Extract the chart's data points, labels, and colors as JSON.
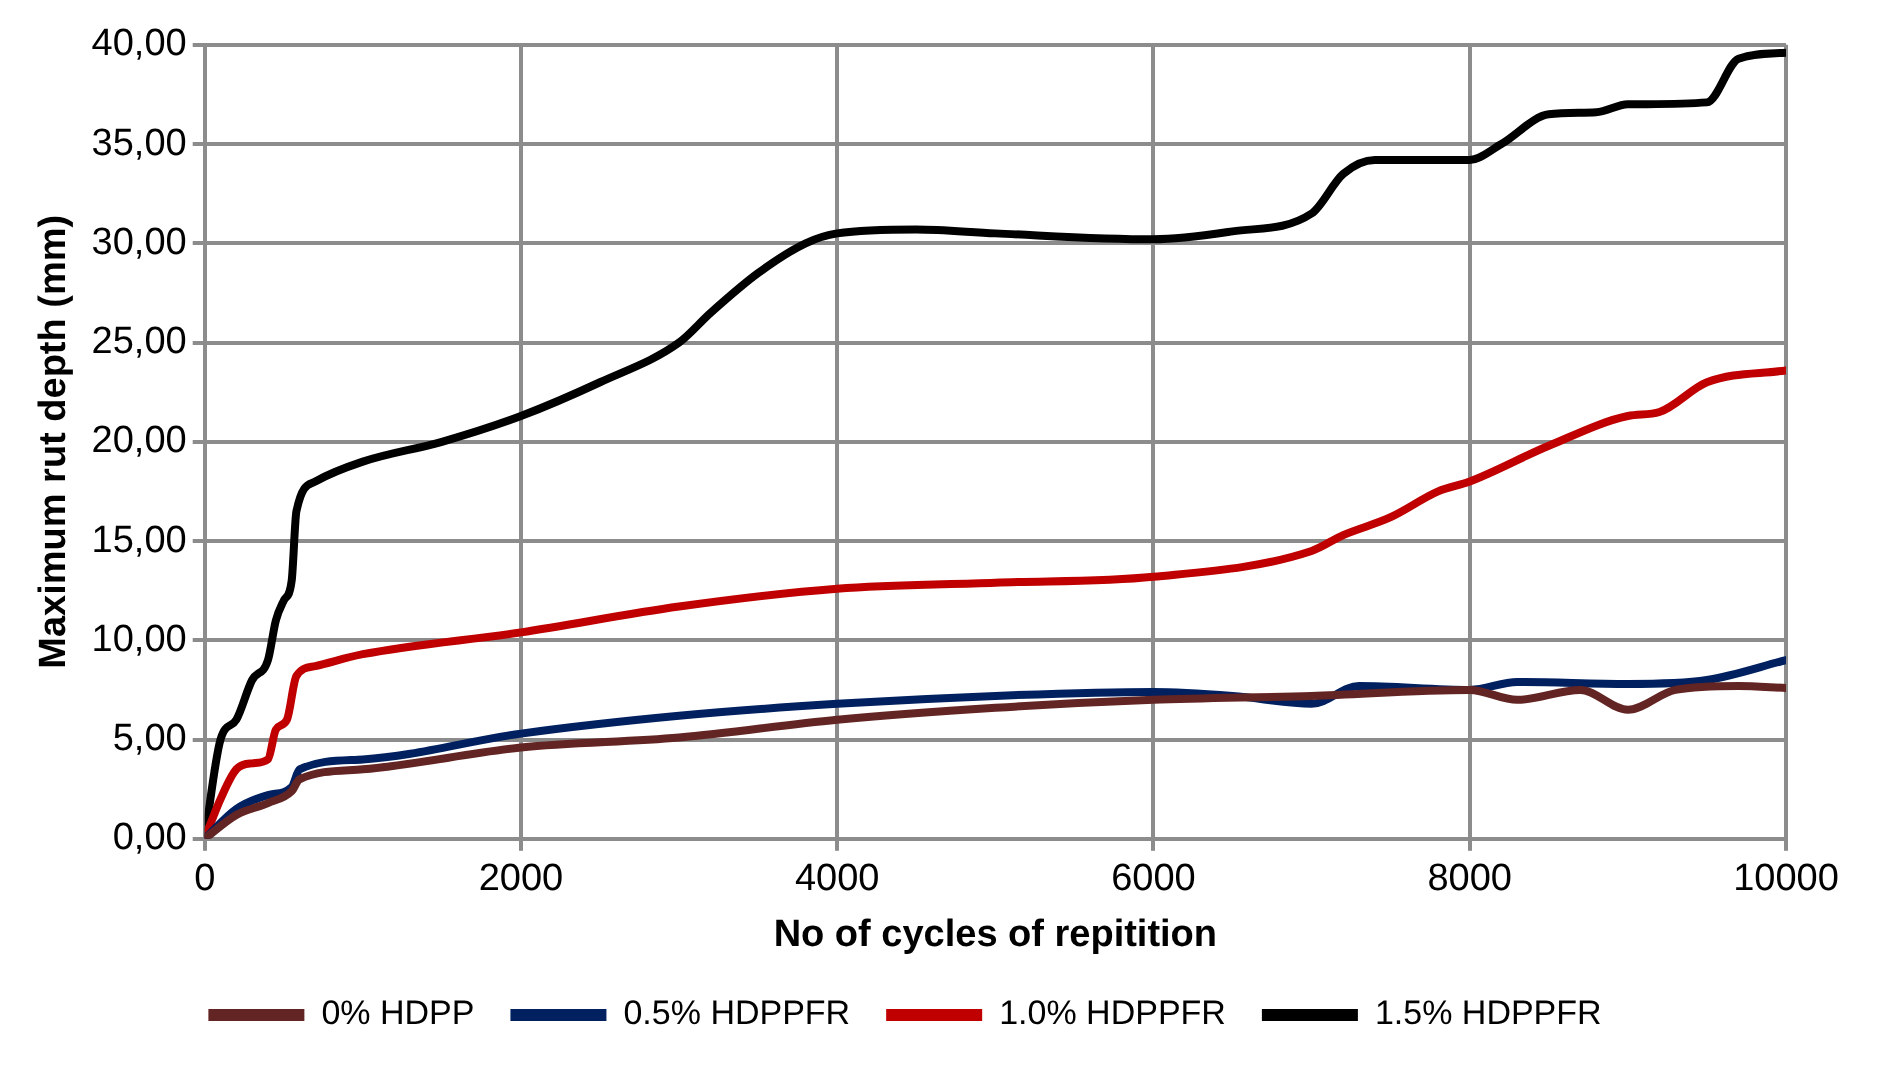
{
  "chart_data": {
    "type": "line",
    "xlabel": "No of cycles of repitition",
    "ylabel": "Maximum rut depth (mm)",
    "xlim": [
      0,
      10000
    ],
    "xticks": [
      0,
      2000,
      4000,
      6000,
      8000,
      10000
    ],
    "ylim": [
      0,
      40
    ],
    "yticks": [
      {
        "value": 0,
        "label": "0,00"
      },
      {
        "value": 5,
        "label": "5,00"
      },
      {
        "value": 10,
        "label": "10,00"
      },
      {
        "value": 15,
        "label": "15,00"
      },
      {
        "value": 20,
        "label": "20,00"
      },
      {
        "value": 25,
        "label": "25,00"
      },
      {
        "value": 30,
        "label": "30,00"
      },
      {
        "value": 35,
        "label": "35,00"
      },
      {
        "value": 40,
        "label": "40,00"
      }
    ],
    "grid": true,
    "legend": "bottom",
    "marker": "none",
    "line_style": "solid",
    "series": [
      {
        "name": "0% HDPP",
        "color": "#632523",
        "x": [
          0,
          200,
          400,
          550,
          600,
          1000,
          2000,
          3000,
          4000,
          5000,
          6000,
          7000,
          8000,
          8300,
          8700,
          9000,
          9300,
          9700,
          10000
        ],
        "values": [
          0,
          1.2,
          1.8,
          2.4,
          3,
          3.5,
          4.6,
          5.1,
          6,
          6.6,
          7,
          7.2,
          7.5,
          7,
          7.5,
          6.5,
          7.5,
          7.7,
          7.6
        ]
      },
      {
        "name": "0.5% HDPPFR",
        "color": "#002060",
        "x": [
          0,
          200,
          400,
          550,
          600,
          1000,
          2000,
          3000,
          4000,
          5000,
          6000,
          6500,
          7000,
          7300,
          8000,
          8300,
          9000,
          9500,
          10000
        ],
        "values": [
          0,
          1.5,
          2.2,
          2.6,
          3.5,
          4,
          5.3,
          6.2,
          6.8,
          7.2,
          7.4,
          7.2,
          6.8,
          7.7,
          7.5,
          7.9,
          7.8,
          8,
          9
        ]
      },
      {
        "name": "1.0% HDPPFR",
        "color": "#c00000",
        "x": [
          0,
          100,
          200,
          300,
          400,
          450,
          520,
          580,
          700,
          1000,
          2000,
          3000,
          4000,
          5000,
          6000,
          7000,
          7200,
          7500,
          7800,
          8000,
          8500,
          9000,
          9200,
          9500,
          10000
        ],
        "values": [
          0,
          2,
          3.5,
          3.8,
          4,
          5.5,
          6,
          8.2,
          8.7,
          9.3,
          10.4,
          11.7,
          12.6,
          12.9,
          13.2,
          14.5,
          15.3,
          16.2,
          17.5,
          18,
          19.8,
          21.3,
          21.5,
          23,
          23.6
        ]
      },
      {
        "name": "1.5% HDPPFR",
        "color": "#000000",
        "x": [
          0,
          100,
          200,
          300,
          400,
          450,
          500,
          550,
          580,
          700,
          1000,
          1500,
          2000,
          2500,
          3000,
          3200,
          3500,
          3800,
          4000,
          4500,
          5000,
          6000,
          6500,
          7000,
          7200,
          7400,
          8000,
          8200,
          8500,
          8800,
          9000,
          9500,
          9700,
          10000
        ],
        "values": [
          0,
          5,
          6,
          8,
          9,
          11,
          12,
          13,
          16.5,
          18,
          19,
          20,
          21.3,
          23,
          25,
          26.5,
          28.5,
          30,
          30.5,
          30.7,
          30.5,
          30.2,
          30.6,
          31.5,
          33.5,
          34.2,
          34.2,
          35,
          36.5,
          36.6,
          37,
          37.1,
          39.3,
          39.6
        ]
      }
    ]
  }
}
